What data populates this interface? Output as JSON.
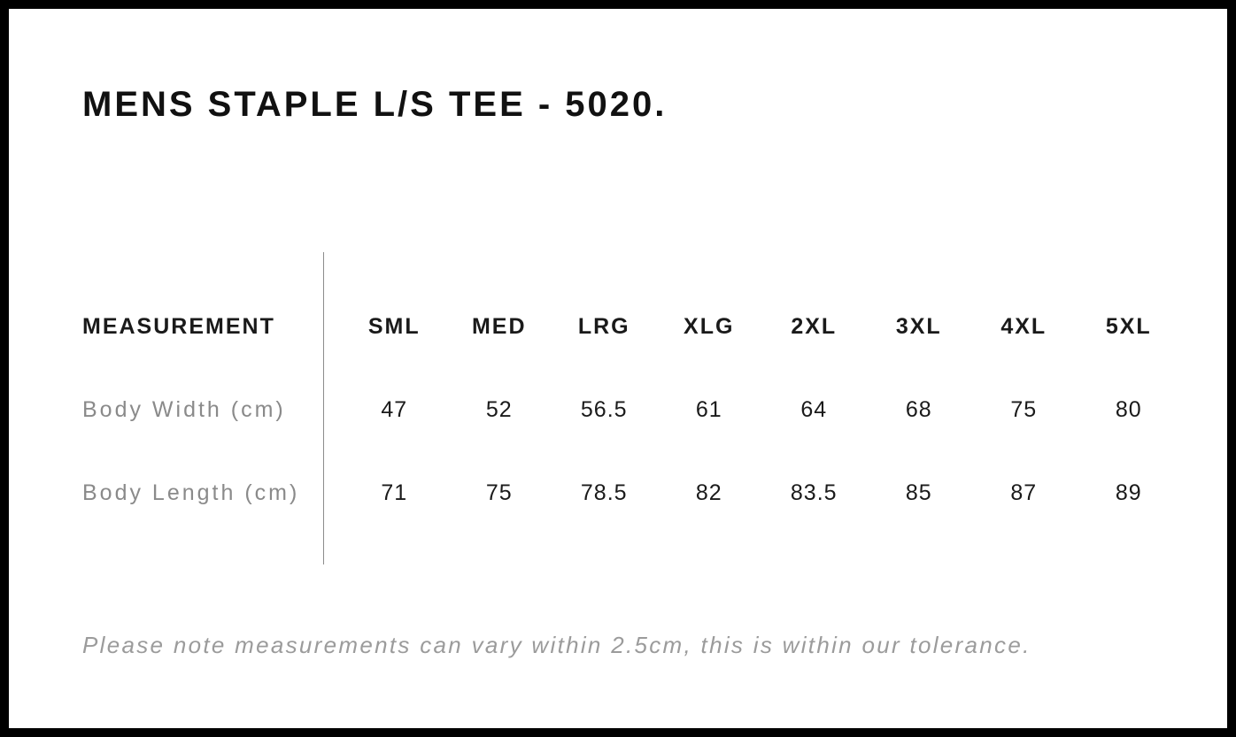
{
  "page": {
    "title": "MENS STAPLE L/S TEE - 5020.",
    "tolerance_note": "Please note measurements can vary within 2.5cm, this is within our tolerance."
  },
  "chart_data": {
    "type": "table",
    "title": "MENS STAPLE L/S TEE - 5020.",
    "columns": [
      "MEASUREMENT",
      "SML",
      "MED",
      "LRG",
      "XLG",
      "2XL",
      "3XL",
      "4XL",
      "5XL"
    ],
    "rows": [
      {
        "label": "Body Width (cm)",
        "values": [
          "47",
          "52",
          "56.5",
          "61",
          "64",
          "68",
          "75",
          "80"
        ]
      },
      {
        "label": "Body Length (cm)",
        "values": [
          "71",
          "75",
          "78.5",
          "82",
          "83.5",
          "85",
          "87",
          "89"
        ]
      }
    ],
    "footnote": "Please note measurements can vary within 2.5cm, this is within our tolerance.",
    "layout": "first column left-aligned size labels, vertical divider between measurement column and size columns, grid off"
  },
  "colors": {
    "background": "#ffffff",
    "page_border": "#000000",
    "heading_text": "#111111",
    "value_text": "#1a1a1a",
    "row_label_text": "#8a8a8a",
    "note_text": "#9b9b9b",
    "divider": "#8c8c8c"
  }
}
